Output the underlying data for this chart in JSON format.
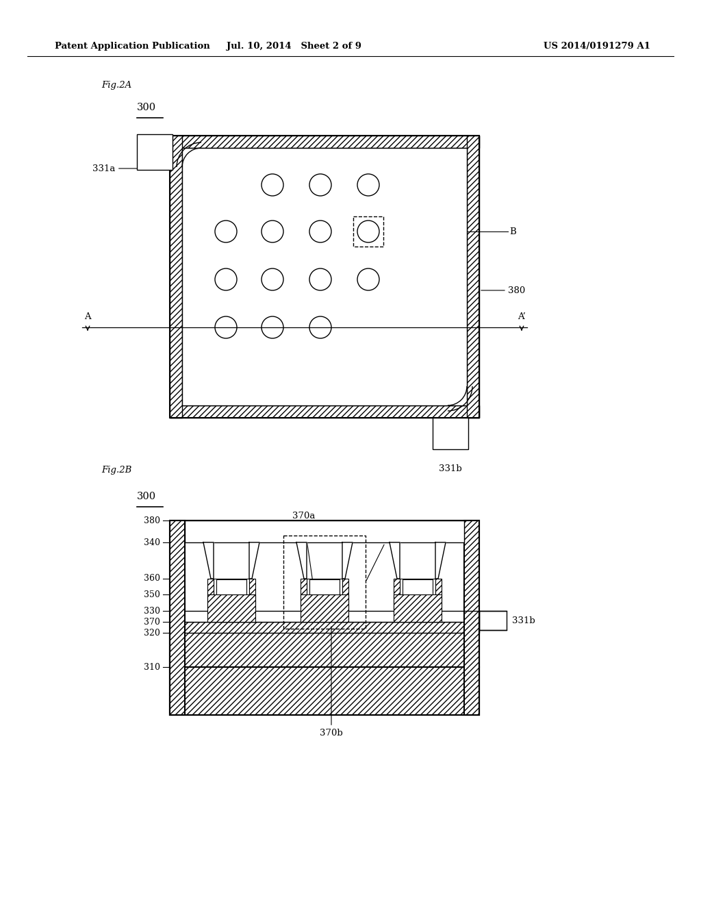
{
  "bg_color": "#ffffff",
  "header_left": "Patent Application Publication",
  "header_mid": "Jul. 10, 2014   Sheet 2 of 9",
  "header_right": "US 2014/0191279 A1",
  "fig2a_label": "Fig.2A",
  "fig2a_ref": "300",
  "fig2b_label": "Fig.2B",
  "fig2b_ref": "300",
  "lw_main": 1.5,
  "lw_thin": 1.0,
  "fontsize_label": 9.5,
  "fontsize_ref": 10.5,
  "fontsize_header": 9.5
}
